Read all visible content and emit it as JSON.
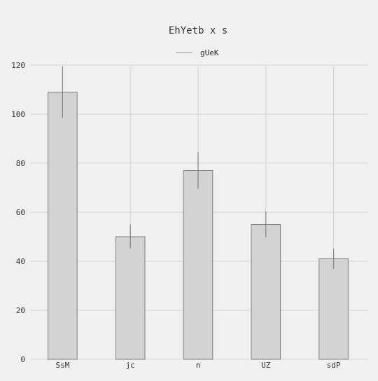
{
  "chart_data": {
    "type": "bar",
    "title": "EhYetb x s",
    "xlabel": "",
    "ylabel": "",
    "categories": [
      "SsM",
      "jc",
      "n",
      "UZ",
      "sdP"
    ],
    "series": [
      {
        "name": "gUeK",
        "values": [
          109,
          50,
          77,
          55,
          41
        ],
        "errors": [
          10.5,
          5,
          7.5,
          5.3,
          4.2
        ]
      }
    ],
    "ylim": [
      0,
      120
    ],
    "yticks": [
      0,
      20,
      40,
      60,
      80,
      100,
      120
    ],
    "grid": true,
    "legend": "top-center",
    "colors": {
      "bar_fill": "#d3d3d3",
      "bar_edge": "#808080",
      "error_bar": "#808080",
      "grid": "#cccccc",
      "background": "#f0f0f0",
      "text": "#333333",
      "legend_line": "#aaaaaa"
    }
  }
}
